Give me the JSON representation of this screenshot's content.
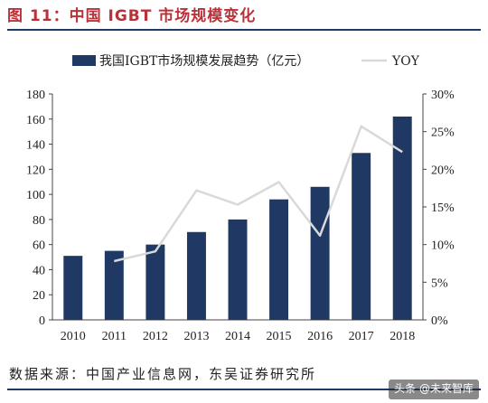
{
  "figure": {
    "title": "图 11：中国 IGBT 市场规模变化",
    "source": "数据来源：中国产业信息网，东吴证券研究所",
    "watermark": "头条 @未来智库"
  },
  "colors": {
    "bar": "#1f3864",
    "line": "#d9d9d9",
    "title": "#b8323a",
    "rule": "#1f3a66"
  },
  "chart_data": {
    "type": "bar",
    "categories": [
      "2010",
      "2011",
      "2012",
      "2013",
      "2014",
      "2015",
      "2016",
      "2017",
      "2018"
    ],
    "series": [
      {
        "name": "我国IGBT市场规模发展趋势（亿元）",
        "type": "bar",
        "axis": "left",
        "values": [
          51,
          55,
          60,
          70,
          80,
          96,
          106,
          133,
          162
        ]
      },
      {
        "name": "YOY",
        "type": "line",
        "axis": "right",
        "values": [
          null,
          7.8,
          9.1,
          17.2,
          15.3,
          18.3,
          11.2,
          25.7,
          22.3
        ]
      }
    ],
    "ylim": [
      0,
      180
    ],
    "yticks": [
      "0",
      "20",
      "40",
      "60",
      "80",
      "100",
      "120",
      "140",
      "160",
      "180"
    ],
    "y2lim": [
      0,
      30
    ],
    "y2ticks": [
      "0%",
      "5%",
      "10%",
      "15%",
      "20%",
      "25%",
      "30%"
    ],
    "legend_position": "top",
    "grid": false
  }
}
